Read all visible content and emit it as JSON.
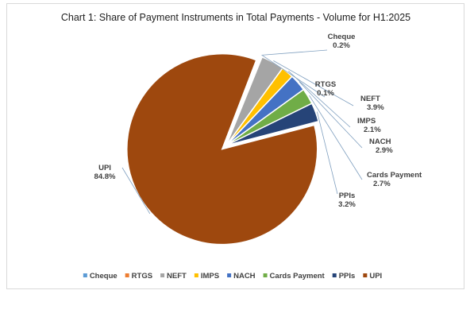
{
  "chart_data": {
    "type": "pie",
    "title": "Chart 1: Share of Payment Instruments in Total Payments - Volume for H1:2025",
    "series": [
      {
        "name": "Cheque",
        "value": 0.2,
        "label": "0.2%",
        "color": "#5b9bd5"
      },
      {
        "name": "RTGS",
        "value": 0.1,
        "label": "0.1%",
        "color": "#ed7d31"
      },
      {
        "name": "NEFT",
        "value": 3.9,
        "label": "3.9%",
        "color": "#a5a5a5"
      },
      {
        "name": "IMPS",
        "value": 2.1,
        "label": "2.1%",
        "color": "#ffc000"
      },
      {
        "name": "NACH",
        "value": 2.9,
        "label": "2.9%",
        "color": "#4472c4"
      },
      {
        "name": "Cards Payment",
        "value": 2.7,
        "label": "2.7%",
        "color": "#70ad47"
      },
      {
        "name": "PPIs",
        "value": 3.2,
        "label": "3.2%",
        "color": "#264478"
      },
      {
        "name": "UPI",
        "value": 84.8,
        "label": "84.8%",
        "color": "#9e480e"
      }
    ],
    "legend_position": "bottom"
  }
}
